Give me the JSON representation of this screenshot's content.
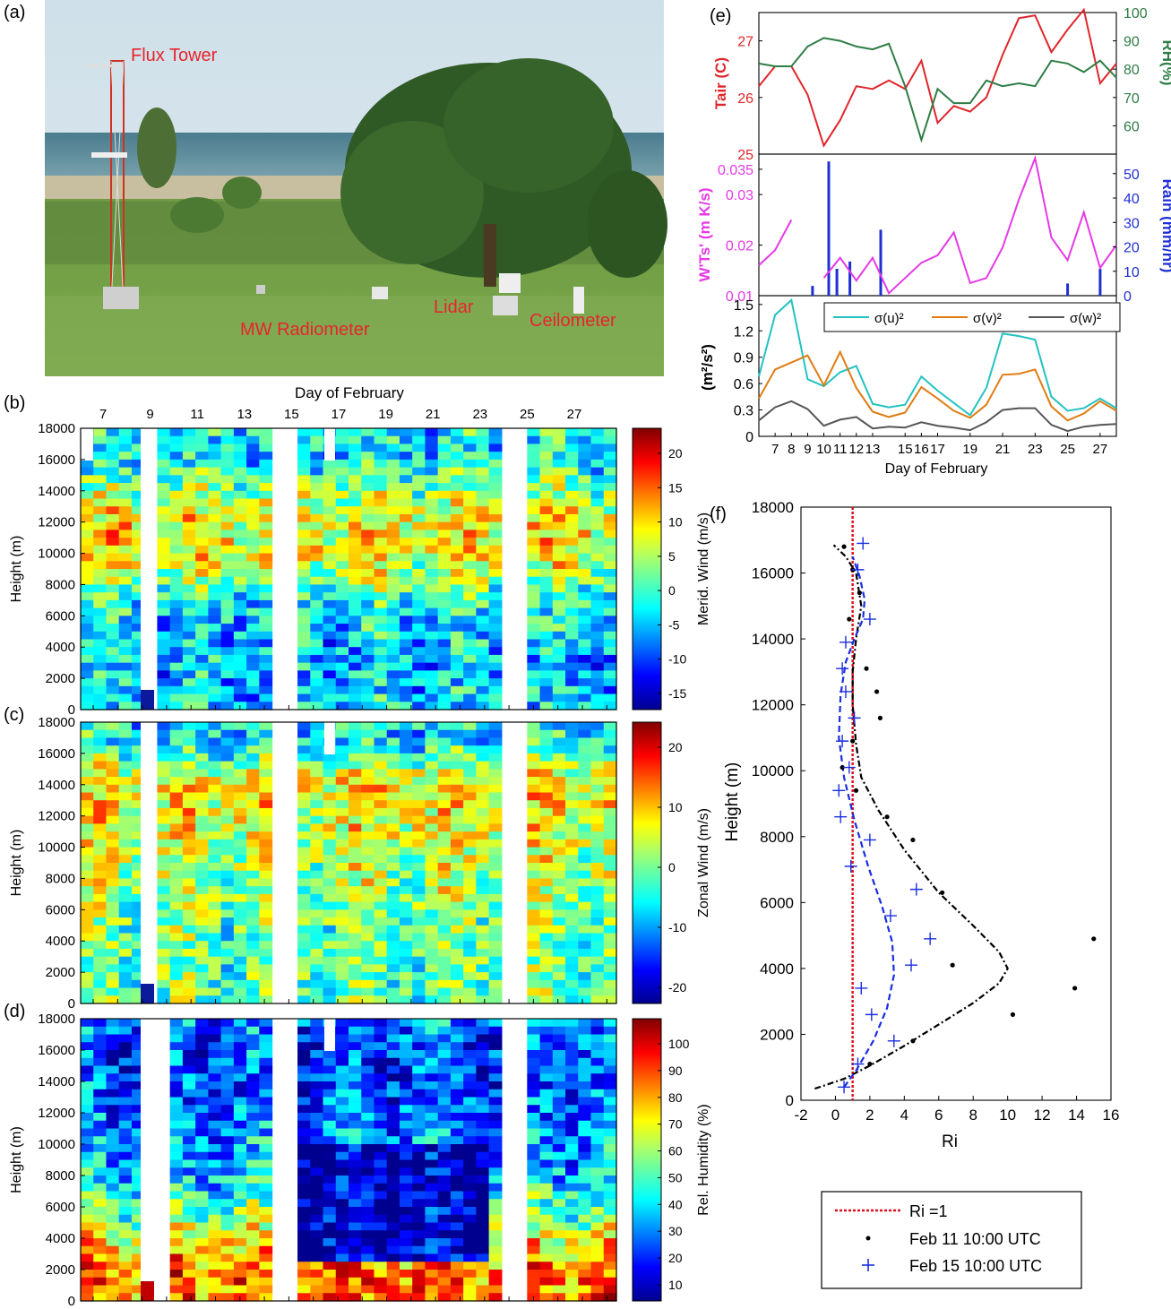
{
  "colors": {
    "flux_label": "#e8242c",
    "tair": "#e0262c",
    "rh": "#2e7d45",
    "wts": "#e53ae6",
    "rain": "#1f2fd2",
    "su": "#22c2c2",
    "sv": "#e07b12",
    "sw": "#555555",
    "ri_line": "#e01020",
    "feb11": "#000000",
    "feb15": "#1a2de0"
  },
  "panel_a": {
    "letter": "(a)",
    "labels": [
      "Flux Tower",
      "MW Radiometer",
      "Lidar",
      "Ceilometer"
    ]
  },
  "heatmaps": {
    "top_axis_title": "Day of February",
    "top_ticks": [
      "7",
      "9",
      "11",
      "13",
      "15",
      "17",
      "19",
      "21",
      "23",
      "25",
      "27"
    ],
    "y_ticks": [
      "0",
      "2000",
      "4000",
      "6000",
      "8000",
      "10000",
      "12000",
      "14000",
      "16000",
      "18000"
    ],
    "y_label": "Height (m)",
    "panels": [
      {
        "letter": "(b)",
        "cbar_label": "Merid. Wind (m/s)",
        "cbar_ticks": [
          "20",
          "15",
          "10",
          "5",
          "0",
          "-5",
          "-10",
          "-15"
        ]
      },
      {
        "letter": "(c)",
        "cbar_label": "Zonal Wind (m/s)",
        "cbar_ticks": [
          "20",
          "10",
          "0",
          "-10",
          "-20"
        ]
      },
      {
        "letter": "(d)",
        "cbar_label": "Rel. Humidity (%)",
        "cbar_ticks": [
          "100",
          "90",
          "80",
          "70",
          "60",
          "50",
          "40",
          "30",
          "20",
          "10"
        ]
      }
    ]
  },
  "chart_data": [
    {
      "type": "line",
      "panel": "(e) top",
      "ylabel": "Tair (C)",
      "y2label": "RH(%)",
      "x": [
        6,
        7,
        8,
        9,
        10,
        11,
        12,
        13,
        14,
        15,
        16,
        17,
        18,
        19,
        20,
        21,
        22,
        23,
        24,
        25,
        26,
        27,
        28
      ],
      "series": [
        {
          "values": [
            26.2,
            26.55,
            26.55,
            26.05,
            25.15,
            25.6,
            26.2,
            26.15,
            26.3,
            26.15,
            26.65,
            25.55,
            25.85,
            25.75,
            26.0,
            26.75,
            27.4,
            27.45,
            26.8,
            27.2,
            27.55,
            26.25,
            26.6
          ]
        },
        {
          "values": [
            82,
            81,
            81,
            88,
            91,
            90,
            88,
            87,
            89,
            74,
            55,
            73,
            68,
            68,
            76,
            74,
            75,
            74,
            83,
            82,
            79,
            83,
            77
          ]
        }
      ],
      "ylim": [
        25,
        27.5
      ],
      "y2lim": [
        50,
        100
      ],
      "yticks": [
        "25",
        "26",
        "27"
      ],
      "y2ticks": [
        "60",
        "70",
        "80",
        "90",
        "100"
      ]
    },
    {
      "type": "line",
      "panel": "(e) middle",
      "ylabel": "W'Ts' (m K/s)",
      "y2label": "Rain (mm/hr)",
      "x": [
        6,
        7,
        8,
        9,
        10,
        11,
        12,
        13,
        14,
        15,
        16,
        17,
        18,
        19,
        20,
        21,
        22,
        23,
        24,
        25,
        26,
        27,
        28
      ],
      "series": [
        {
          "values": [
            0.016,
            0.019,
            0.025,
            null,
            0.0135,
            0.0175,
            0.013,
            0.0175,
            0.0105,
            0.0135,
            0.0165,
            0.018,
            0.0225,
            0.0125,
            0.0135,
            0.0195,
            0.029,
            0.0372,
            0.0215,
            0.017,
            0.0265,
            0.0155,
            0.02
          ]
        },
        {
          "bars": [
            [
              9.3,
              4
            ],
            [
              10.3,
              55
            ],
            [
              10.8,
              11
            ],
            [
              11.6,
              14
            ],
            [
              13.5,
              27
            ],
            [
              25.0,
              5
            ],
            [
              27.0,
              11
            ]
          ]
        }
      ],
      "ylim": [
        0.01,
        0.038
      ],
      "y2lim": [
        0,
        58
      ],
      "yticks": [
        "0.01",
        "0.02",
        "0.03",
        "0.035"
      ],
      "y2ticks": [
        "0",
        "10",
        "20",
        "30",
        "40",
        "50"
      ]
    },
    {
      "type": "line",
      "panel": "(e) bottom",
      "ylabel": "(m²/s²)",
      "xlabel": "Day of February",
      "xticks": [
        "7",
        "8",
        "9",
        "10",
        "11",
        "12",
        "13",
        "15",
        "16",
        "17",
        "19",
        "21",
        "23",
        "25",
        "27"
      ],
      "legend_position": "top-right",
      "x": [
        6,
        7,
        8,
        9,
        10,
        11,
        12,
        13,
        14,
        15,
        16,
        17,
        18,
        19,
        20,
        21,
        22,
        23,
        24,
        25,
        26,
        27,
        28
      ],
      "series": [
        {
          "name": "σ(u)²",
          "values": [
            0.68,
            1.38,
            1.55,
            0.65,
            0.57,
            0.73,
            0.8,
            0.37,
            0.33,
            0.36,
            0.68,
            0.52,
            0.38,
            0.24,
            0.55,
            1.17,
            1.14,
            1.1,
            0.45,
            0.29,
            0.32,
            0.43,
            0.32
          ]
        },
        {
          "name": "σ(v)²",
          "values": [
            0.43,
            0.76,
            0.84,
            0.92,
            0.58,
            0.96,
            0.55,
            0.28,
            0.22,
            0.27,
            0.56,
            0.43,
            0.29,
            0.21,
            0.36,
            0.7,
            0.71,
            0.76,
            0.34,
            0.18,
            0.26,
            0.4,
            0.29
          ]
        },
        {
          "name": "σ(w)²",
          "values": [
            0.18,
            0.33,
            0.4,
            0.31,
            0.12,
            0.19,
            0.22,
            0.09,
            0.11,
            0.1,
            0.16,
            0.12,
            0.1,
            0.07,
            0.16,
            0.3,
            0.32,
            0.32,
            0.13,
            0.06,
            0.11,
            0.13,
            0.14
          ]
        }
      ],
      "ylim": [
        0,
        1.6
      ],
      "yticks": [
        "0",
        "0.3",
        "0.6",
        "0.9",
        "1.2",
        "1.5"
      ]
    },
    {
      "type": "scatter",
      "panel": "(f)",
      "xlabel": "Ri",
      "ylabel": "Height (m)",
      "xlim": [
        -2,
        16
      ],
      "ylim": [
        0,
        18000
      ],
      "xticks": [
        "-2",
        "0",
        "2",
        "4",
        "6",
        "8",
        "10",
        "12",
        "14",
        "16"
      ],
      "yticks": [
        "0",
        "2000",
        "4000",
        "6000",
        "8000",
        "10000",
        "12000",
        "14000",
        "16000",
        "18000"
      ],
      "legend_position": "below",
      "reference_line": {
        "name": "Ri =1",
        "x": 1
      },
      "series": [
        {
          "name": "Feb 11 10:00 UTC",
          "points": [
            [
              0.5,
              16800
            ],
            [
              1.0,
              16100
            ],
            [
              1.4,
              15400
            ],
            [
              0.8,
              14600
            ],
            [
              1.8,
              13100
            ],
            [
              2.4,
              12400
            ],
            [
              2.6,
              11600
            ],
            [
              1.0,
              10900
            ],
            [
              0.4,
              10100
            ],
            [
              1.2,
              9400
            ],
            [
              3.0,
              8600
            ],
            [
              4.5,
              7900
            ],
            [
              6.2,
              6300
            ],
            [
              6.8,
              4100
            ],
            [
              15.0,
              4900
            ],
            [
              13.9,
              3400
            ],
            [
              10.3,
              2600
            ],
            [
              4.5,
              1800
            ],
            [
              2.0,
              1100
            ]
          ],
          "fit": [
            [
              -1.2,
              350
            ],
            [
              0.5,
              650
            ],
            [
              2,
              1050
            ],
            [
              4,
              1650
            ],
            [
              6,
              2300
            ],
            [
              8,
              2950
            ],
            [
              9.5,
              3550
            ],
            [
              10,
              4000
            ],
            [
              9.5,
              4500
            ],
            [
              8,
              5300
            ],
            [
              6,
              6300
            ],
            [
              4,
              7600
            ],
            [
              2.5,
              8800
            ],
            [
              1.5,
              9800
            ],
            [
              1.2,
              10800
            ],
            [
              1.0,
              12000
            ],
            [
              1.0,
              13000
            ],
            [
              1.2,
              14000
            ],
            [
              1.5,
              15000
            ],
            [
              1.2,
              16000
            ],
            [
              0.6,
              16500
            ],
            [
              -0.1,
              16850
            ]
          ]
        },
        {
          "name": "Feb 15 10:00 UTC",
          "points": [
            [
              1.6,
              16900
            ],
            [
              1.3,
              16100
            ],
            [
              2.0,
              14600
            ],
            [
              0.6,
              13900
            ],
            [
              0.4,
              13100
            ],
            [
              0.6,
              12400
            ],
            [
              1.1,
              11600
            ],
            [
              0.4,
              10900
            ],
            [
              0.8,
              10100
            ],
            [
              0.2,
              9400
            ],
            [
              0.3,
              8600
            ],
            [
              2.0,
              7900
            ],
            [
              0.9,
              7100
            ],
            [
              3.2,
              5600
            ],
            [
              4.7,
              6400
            ],
            [
              5.5,
              4900
            ],
            [
              4.4,
              4100
            ],
            [
              1.5,
              3400
            ],
            [
              2.1,
              2600
            ],
            [
              3.4,
              1800
            ],
            [
              1.3,
              1100
            ],
            [
              0.5,
              400
            ]
          ],
          "fit": [
            [
              0.5,
              400
            ],
            [
              1.2,
              900
            ],
            [
              2.2,
              1800
            ],
            [
              3.0,
              2800
            ],
            [
              3.4,
              3800
            ],
            [
              3.3,
              4800
            ],
            [
              2.7,
              5900
            ],
            [
              1.9,
              7100
            ],
            [
              1.1,
              8500
            ],
            [
              0.5,
              9800
            ],
            [
              0.2,
              11000
            ],
            [
              0.3,
              12300
            ],
            [
              0.6,
              13300
            ],
            [
              1.1,
              14000
            ],
            [
              1.6,
              14600
            ],
            [
              1.7,
              15200
            ],
            [
              1.4,
              15900
            ],
            [
              1.0,
              16500
            ]
          ]
        }
      ]
    }
  ]
}
